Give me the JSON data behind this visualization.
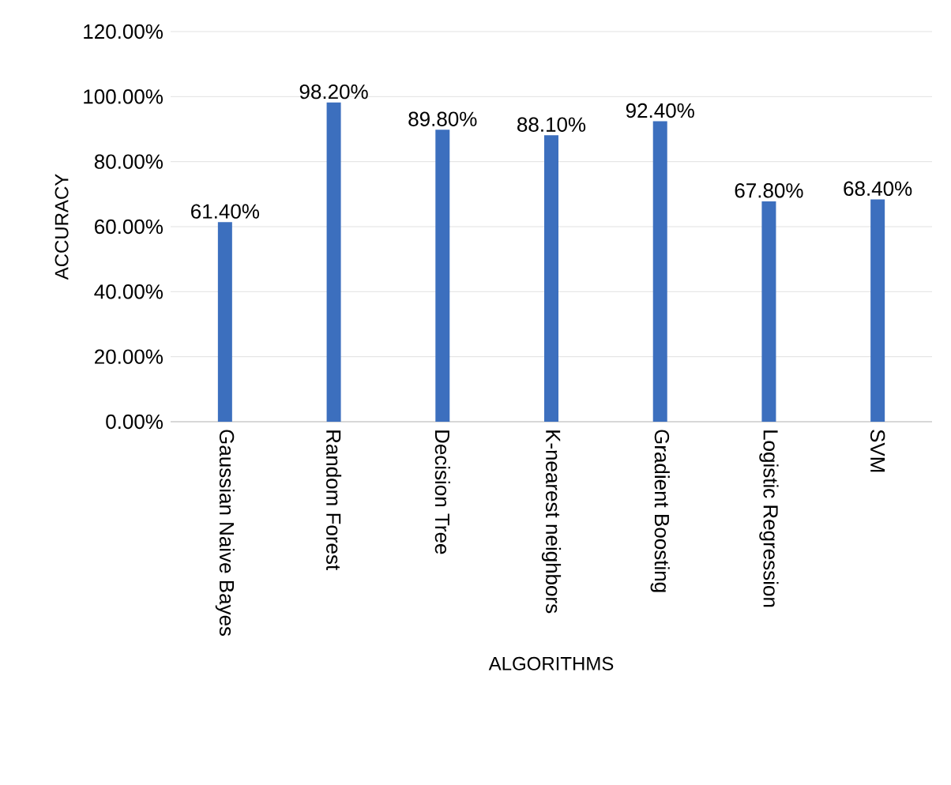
{
  "chart_data": {
    "type": "bar",
    "xlabel": "ALGORITHMS",
    "ylabel": "ACCURACY",
    "categories": [
      "Gaussian Naive Bayes",
      "Random Forest",
      "Decision Tree",
      "K-nearest neighbors",
      "Gradient Boosting",
      "Logistic Regression",
      "SVM"
    ],
    "values": [
      61.4,
      98.2,
      89.8,
      88.1,
      92.4,
      67.8,
      68.4
    ],
    "value_labels": [
      "61.40%",
      "98.20%",
      "89.80%",
      "88.10%",
      "92.40%",
      "67.80%",
      "68.40%"
    ],
    "color": "#3c6fbe",
    "ylim": [
      0,
      120
    ],
    "yticks": [
      {
        "value": 0,
        "label": "0.00%"
      },
      {
        "value": 20,
        "label": "20.00%"
      },
      {
        "value": 40,
        "label": "40.00%"
      },
      {
        "value": 60,
        "label": "60.00%"
      },
      {
        "value": 80,
        "label": "80.00%"
      },
      {
        "value": 100,
        "label": "100.00%"
      },
      {
        "value": 120,
        "label": "120.00%"
      }
    ],
    "grid": "y"
  }
}
